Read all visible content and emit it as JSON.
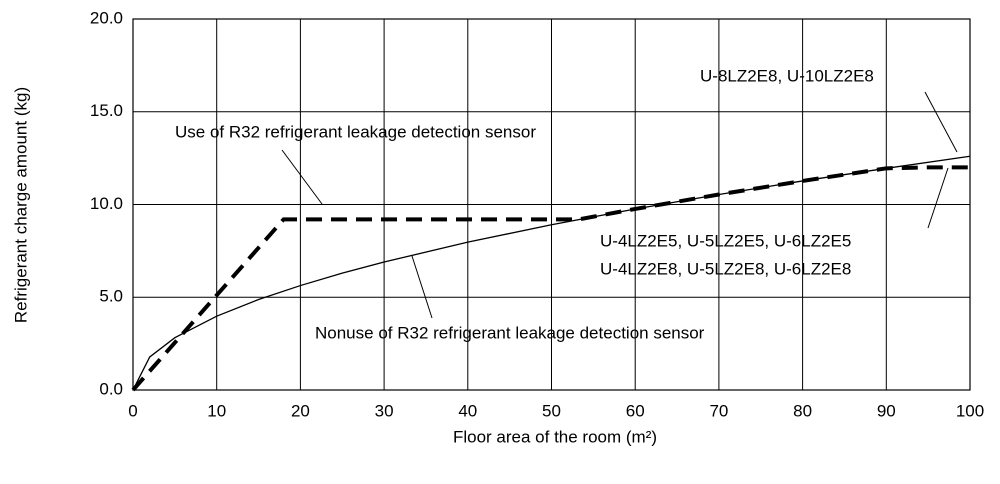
{
  "chart_data": {
    "type": "line",
    "xlabel": "Floor area of the room (m²)",
    "ylabel": "Refrigerant charge amount (kg)",
    "xlim": [
      0,
      100
    ],
    "ylim": [
      0,
      20
    ],
    "xticks": [
      0,
      10,
      20,
      30,
      40,
      50,
      60,
      70,
      80,
      90,
      100
    ],
    "yticks": [
      {
        "value": 0,
        "label": "0.0"
      },
      {
        "value": 5,
        "label": "5.0"
      },
      {
        "value": 10,
        "label": "10.0"
      },
      {
        "value": 15,
        "label": "15.0"
      },
      {
        "value": 20,
        "label": "20.0"
      }
    ],
    "grid": true,
    "series": [
      {
        "name": "Nonuse of R32 refrigerant leakage detection sensor",
        "color": "#000000",
        "style": "solid",
        "x": [
          0,
          2,
          5,
          10,
          15,
          20,
          25,
          30,
          40,
          50,
          60,
          70,
          80,
          90,
          100
        ],
        "values": [
          0,
          1.78,
          2.82,
          3.98,
          4.88,
          5.63,
          6.3,
          6.9,
          7.97,
          8.91,
          9.76,
          10.54,
          11.27,
          11.95,
          12.6
        ]
      },
      {
        "name": "Use of R32 refrigerant leakage detection sensor",
        "color": "#000000",
        "style": "dashed",
        "x": [
          0,
          18,
          53.3,
          60,
          70,
          80,
          90,
          95,
          100
        ],
        "values": [
          0,
          9.2,
          9.2,
          9.76,
          10.54,
          11.27,
          11.95,
          12.0,
          12.0
        ]
      }
    ],
    "annotations": [
      "U-8LZ2E8, U-10LZ2E8",
      "U-4LZ2E5, U-5LZ2E5, U-6LZ2E5",
      "U-4LZ2E8, U-5LZ2E8, U-6LZ2E8"
    ]
  }
}
